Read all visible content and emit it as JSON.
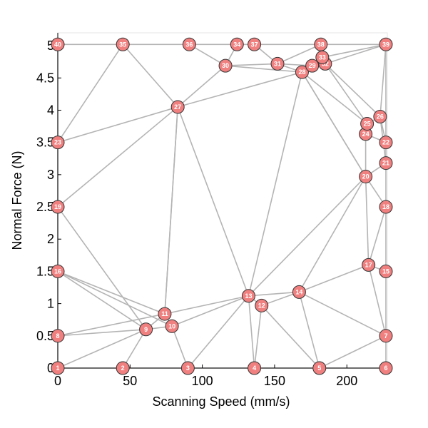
{
  "chart_data": {
    "type": "scatter",
    "title": "",
    "xlabel": "Scanning Speed (mm/s)",
    "ylabel": "Normal Force (N)",
    "xlim": [
      0,
      228
    ],
    "ylim": [
      0,
      5.2
    ],
    "xticks": [
      0,
      50,
      100,
      150,
      200
    ],
    "yticks": [
      0,
      0.5,
      1,
      1.5,
      2,
      2.5,
      3,
      3.5,
      4,
      4.5,
      5
    ],
    "ytick_labels": [
      "0",
      "0.5",
      "1",
      "1.5",
      "2",
      "2.5",
      "3",
      "3.5",
      "4",
      "4.5",
      "5"
    ],
    "grid": false,
    "marker_color": "#f08080",
    "edge_color": "#b4b4b4",
    "nodes": [
      {
        "id": "1",
        "x": 0,
        "y": 0
      },
      {
        "id": "2",
        "x": 45,
        "y": 0
      },
      {
        "id": "3",
        "x": 90,
        "y": 0
      },
      {
        "id": "4",
        "x": 136,
        "y": 0
      },
      {
        "id": "5",
        "x": 181,
        "y": 0
      },
      {
        "id": "6",
        "x": 227,
        "y": 0
      },
      {
        "id": "7",
        "x": 227,
        "y": 0.5
      },
      {
        "id": "8",
        "x": 0,
        "y": 0.5
      },
      {
        "id": "9",
        "x": 61,
        "y": 0.6
      },
      {
        "id": "10",
        "x": 79,
        "y": 0.65
      },
      {
        "id": "11",
        "x": 74,
        "y": 0.84
      },
      {
        "id": "12",
        "x": 141,
        "y": 0.97
      },
      {
        "id": "13",
        "x": 132,
        "y": 1.12
      },
      {
        "id": "14",
        "x": 167,
        "y": 1.18
      },
      {
        "id": "15",
        "x": 227,
        "y": 1.5
      },
      {
        "id": "16",
        "x": 0,
        "y": 1.5
      },
      {
        "id": "17",
        "x": 215,
        "y": 1.6
      },
      {
        "id": "18",
        "x": 227,
        "y": 2.5
      },
      {
        "id": "19",
        "x": 0,
        "y": 2.5
      },
      {
        "id": "20",
        "x": 213,
        "y": 2.97
      },
      {
        "id": "21",
        "x": 227,
        "y": 3.18
      },
      {
        "id": "22",
        "x": 227,
        "y": 3.5
      },
      {
        "id": "23",
        "x": 0,
        "y": 3.5
      },
      {
        "id": "24",
        "x": 213,
        "y": 3.63
      },
      {
        "id": "25",
        "x": 214,
        "y": 3.79
      },
      {
        "id": "26",
        "x": 223,
        "y": 3.9
      },
      {
        "id": "27",
        "x": 83,
        "y": 4.05
      },
      {
        "id": "28",
        "x": 169,
        "y": 4.59
      },
      {
        "id": "29",
        "x": 176,
        "y": 4.69
      },
      {
        "id": "30",
        "x": 116,
        "y": 4.69
      },
      {
        "id": "31",
        "x": 152,
        "y": 4.72
      },
      {
        "id": "32",
        "x": 185,
        "y": 4.72
      },
      {
        "id": "33",
        "x": 183,
        "y": 4.82
      },
      {
        "id": "34",
        "x": 124,
        "y": 5.02
      },
      {
        "id": "35",
        "x": 45,
        "y": 5.02
      },
      {
        "id": "36",
        "x": 91,
        "y": 5.02
      },
      {
        "id": "37",
        "x": 136,
        "y": 5.02
      },
      {
        "id": "38",
        "x": 182,
        "y": 5.02
      },
      {
        "id": "39",
        "x": 227,
        "y": 5.02
      },
      {
        "id": "40",
        "x": 0,
        "y": 5.02
      }
    ],
    "edges": [
      [
        "1",
        "2"
      ],
      [
        "2",
        "3"
      ],
      [
        "3",
        "4"
      ],
      [
        "4",
        "5"
      ],
      [
        "5",
        "6"
      ],
      [
        "1",
        "8"
      ],
      [
        "8",
        "16"
      ],
      [
        "16",
        "19"
      ],
      [
        "19",
        "23"
      ],
      [
        "23",
        "40"
      ],
      [
        "40",
        "35"
      ],
      [
        "35",
        "36"
      ],
      [
        "36",
        "34"
      ],
      [
        "34",
        "37"
      ],
      [
        "37",
        "38"
      ],
      [
        "38",
        "39"
      ],
      [
        "6",
        "7"
      ],
      [
        "7",
        "15"
      ],
      [
        "15",
        "18"
      ],
      [
        "18",
        "21"
      ],
      [
        "21",
        "22"
      ],
      [
        "22",
        "39"
      ],
      [
        "1",
        "9"
      ],
      [
        "2",
        "9"
      ],
      [
        "8",
        "9"
      ],
      [
        "8",
        "11"
      ],
      [
        "9",
        "10"
      ],
      [
        "9",
        "11"
      ],
      [
        "10",
        "11"
      ],
      [
        "3",
        "10"
      ],
      [
        "3",
        "13"
      ],
      [
        "10",
        "13"
      ],
      [
        "11",
        "13"
      ],
      [
        "11",
        "16"
      ],
      [
        "9",
        "16"
      ],
      [
        "16",
        "10"
      ],
      [
        "4",
        "12"
      ],
      [
        "4",
        "13"
      ],
      [
        "12",
        "13"
      ],
      [
        "12",
        "14"
      ],
      [
        "5",
        "12"
      ],
      [
        "5",
        "14"
      ],
      [
        "13",
        "14"
      ],
      [
        "5",
        "7"
      ],
      [
        "14",
        "7"
      ],
      [
        "14",
        "17"
      ],
      [
        "13",
        "20"
      ],
      [
        "14",
        "20"
      ],
      [
        "7",
        "17"
      ],
      [
        "15",
        "17"
      ],
      [
        "17",
        "20"
      ],
      [
        "17",
        "18"
      ],
      [
        "18",
        "20"
      ],
      [
        "20",
        "21"
      ],
      [
        "20",
        "24"
      ],
      [
        "20",
        "28"
      ],
      [
        "21",
        "26"
      ],
      [
        "22",
        "24"
      ],
      [
        "22",
        "26"
      ],
      [
        "24",
        "25"
      ],
      [
        "25",
        "26"
      ],
      [
        "25",
        "28"
      ],
      [
        "26",
        "32"
      ],
      [
        "26",
        "39"
      ],
      [
        "25",
        "32"
      ],
      [
        "28",
        "29"
      ],
      [
        "28",
        "30"
      ],
      [
        "28",
        "31"
      ],
      [
        "28",
        "13"
      ],
      [
        "28",
        "27"
      ],
      [
        "28",
        "20"
      ],
      [
        "29",
        "32"
      ],
      [
        "29",
        "33"
      ],
      [
        "29",
        "31"
      ],
      [
        "30",
        "31"
      ],
      [
        "30",
        "34"
      ],
      [
        "30",
        "36"
      ],
      [
        "30",
        "27"
      ],
      [
        "31",
        "37"
      ],
      [
        "31",
        "38"
      ],
      [
        "33",
        "38"
      ],
      [
        "33",
        "39"
      ],
      [
        "32",
        "39"
      ],
      [
        "32",
        "38"
      ],
      [
        "27",
        "23"
      ],
      [
        "27",
        "19"
      ],
      [
        "27",
        "35"
      ],
      [
        "27",
        "11"
      ],
      [
        "27",
        "13"
      ],
      [
        "23",
        "35"
      ],
      [
        "19",
        "9"
      ],
      [
        "11",
        "27"
      ]
    ]
  }
}
